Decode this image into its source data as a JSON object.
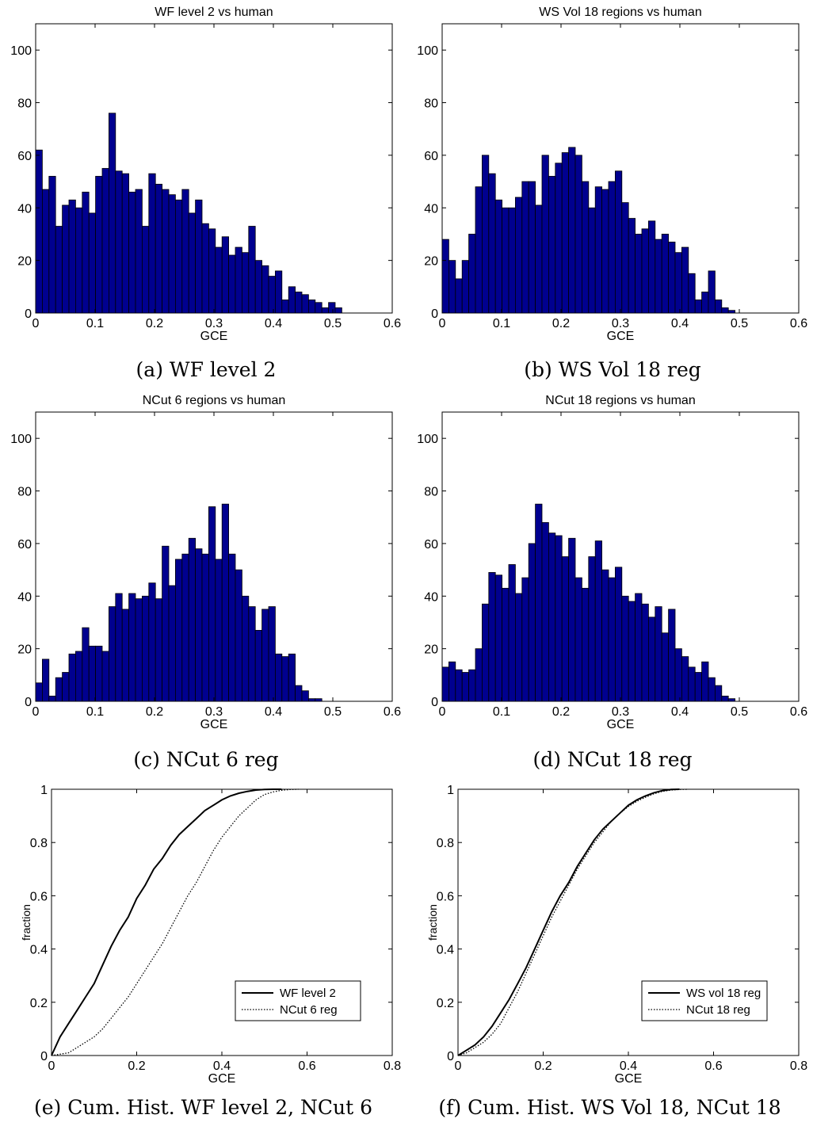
{
  "captions": {
    "a": "(a) WF level 2",
    "b": "(b) WS Vol 18 reg",
    "c": "(c) NCut 6 reg",
    "d": "(d) NCut 18 reg",
    "e": "(e) Cum. Hist. WF level 2, NCut 6",
    "f": "(f) Cum. Hist. WS Vol 18, NCut 18"
  },
  "colors": {
    "bar_fill": "#00008f",
    "bar_edge": "#000000",
    "axis": "#000000"
  },
  "chart_data": [
    {
      "id": "a",
      "type": "bar",
      "title": "WF level 2 vs human",
      "xlabel": "GCE",
      "ylabel": "",
      "xlim": [
        0,
        0.6
      ],
      "ylim": [
        0,
        110
      ],
      "xticks": [
        "0",
        "0.1",
        "0.2",
        "0.3",
        "0.4",
        "0.5",
        "0.6"
      ],
      "yticks": [
        "0",
        "20",
        "40",
        "60",
        "80",
        "100"
      ],
      "bin_start": 0,
      "bin_width": 0.0112,
      "values": [
        62,
        47,
        52,
        33,
        41,
        43,
        40,
        46,
        38,
        52,
        55,
        76,
        54,
        53,
        46,
        47,
        33,
        53,
        49,
        47,
        45,
        43,
        47,
        38,
        43,
        34,
        32,
        25,
        29,
        22,
        25,
        23,
        33,
        20,
        18,
        14,
        16,
        5,
        10,
        8,
        7,
        5,
        4,
        2,
        4,
        2,
        0,
        0,
        0,
        0,
        0,
        0,
        0
      ]
    },
    {
      "id": "b",
      "type": "bar",
      "title": "WS Vol 18 regions vs human",
      "xlabel": "GCE",
      "ylabel": "",
      "xlim": [
        0,
        0.6
      ],
      "ylim": [
        0,
        110
      ],
      "xticks": [
        "0",
        "0.1",
        "0.2",
        "0.3",
        "0.4",
        "0.5",
        "0.6"
      ],
      "yticks": [
        "0",
        "20",
        "40",
        "60",
        "80",
        "100"
      ],
      "bin_start": 0.0,
      "bin_width": 0.0112,
      "values": [
        28,
        20,
        13,
        20,
        30,
        48,
        60,
        53,
        43,
        40,
        40,
        44,
        50,
        50,
        41,
        60,
        52,
        57,
        61,
        63,
        60,
        50,
        40,
        48,
        47,
        50,
        54,
        42,
        36,
        30,
        32,
        35,
        28,
        30,
        27,
        23,
        25,
        15,
        5,
        8,
        16,
        5,
        2,
        1,
        0,
        0,
        0,
        0,
        0,
        0,
        0,
        0,
        0
      ]
    },
    {
      "id": "c",
      "type": "bar",
      "title": "NCut 6 regions vs human",
      "xlabel": "GCE",
      "ylabel": "",
      "xlim": [
        0,
        0.6
      ],
      "ylim": [
        0,
        110
      ],
      "xticks": [
        "0",
        "0.1",
        "0.2",
        "0.3",
        "0.4",
        "0.5",
        "0.6"
      ],
      "yticks": [
        "0",
        "20",
        "40",
        "60",
        "80",
        "100"
      ],
      "bin_start": 0.0,
      "bin_width": 0.0112,
      "values": [
        7,
        16,
        2,
        9,
        11,
        18,
        19,
        28,
        21,
        21,
        19,
        36,
        41,
        35,
        41,
        39,
        40,
        45,
        39,
        59,
        44,
        54,
        56,
        62,
        58,
        56,
        74,
        54,
        75,
        56,
        50,
        40,
        36,
        27,
        35,
        36,
        18,
        17,
        18,
        6,
        4,
        1,
        1,
        0,
        0,
        0,
        0,
        0,
        0,
        0,
        0,
        0,
        0
      ]
    },
    {
      "id": "d",
      "type": "bar",
      "title": "NCut 18 regions vs human",
      "xlabel": "GCE",
      "ylabel": "",
      "xlim": [
        0,
        0.6
      ],
      "ylim": [
        0,
        110
      ],
      "xticks": [
        "0",
        "0.1",
        "0.2",
        "0.3",
        "0.4",
        "0.5",
        "0.6"
      ],
      "yticks": [
        "0",
        "20",
        "40",
        "60",
        "80",
        "100"
      ],
      "bin_start": 0.0,
      "bin_width": 0.0112,
      "values": [
        13,
        15,
        12,
        11,
        12,
        20,
        37,
        49,
        48,
        43,
        52,
        41,
        47,
        60,
        75,
        68,
        64,
        63,
        55,
        62,
        47,
        43,
        55,
        61,
        50,
        47,
        51,
        40,
        38,
        41,
        37,
        32,
        36,
        26,
        35,
        20,
        17,
        13,
        11,
        15,
        9,
        6,
        2,
        1,
        0,
        0,
        0,
        0,
        0,
        0,
        0,
        0,
        0
      ]
    },
    {
      "id": "e",
      "type": "line",
      "title": "",
      "xlabel": "GCE",
      "ylabel": "fraction",
      "xlim": [
        0,
        0.8
      ],
      "ylim": [
        0,
        1
      ],
      "xticks": [
        "0",
        "0.2",
        "0.4",
        "0.6",
        "0.8"
      ],
      "yticks": [
        "0",
        "0.2",
        "0.4",
        "0.6",
        "0.8",
        "1"
      ],
      "legend_position": "lower-right",
      "series": [
        {
          "name": "WF level 2",
          "style": "solid",
          "x": [
            0,
            0.02,
            0.04,
            0.06,
            0.08,
            0.1,
            0.12,
            0.14,
            0.16,
            0.18,
            0.2,
            0.22,
            0.24,
            0.26,
            0.28,
            0.3,
            0.32,
            0.34,
            0.36,
            0.38,
            0.4,
            0.42,
            0.44,
            0.46,
            0.48,
            0.5,
            0.52,
            0.54
          ],
          "y": [
            0,
            0.07,
            0.12,
            0.17,
            0.22,
            0.27,
            0.34,
            0.41,
            0.47,
            0.52,
            0.59,
            0.64,
            0.7,
            0.74,
            0.79,
            0.83,
            0.86,
            0.89,
            0.92,
            0.94,
            0.96,
            0.975,
            0.985,
            0.992,
            0.997,
            0.999,
            1.0,
            1.0
          ]
        },
        {
          "name": "NCut 6 reg",
          "style": "dotted",
          "x": [
            0,
            0.04,
            0.06,
            0.08,
            0.1,
            0.12,
            0.14,
            0.16,
            0.18,
            0.2,
            0.22,
            0.24,
            0.26,
            0.28,
            0.3,
            0.32,
            0.34,
            0.36,
            0.38,
            0.4,
            0.42,
            0.44,
            0.46,
            0.48,
            0.5,
            0.52,
            0.54,
            0.56,
            0.58
          ],
          "y": [
            0,
            0.01,
            0.03,
            0.05,
            0.07,
            0.1,
            0.14,
            0.18,
            0.22,
            0.27,
            0.32,
            0.37,
            0.42,
            0.48,
            0.54,
            0.6,
            0.65,
            0.71,
            0.77,
            0.82,
            0.86,
            0.9,
            0.93,
            0.96,
            0.98,
            0.99,
            0.996,
            0.999,
            1.0
          ]
        }
      ]
    },
    {
      "id": "f",
      "type": "line",
      "title": "",
      "xlabel": "GCE",
      "ylabel": "fraction",
      "xlim": [
        0,
        0.8
      ],
      "ylim": [
        0,
        1
      ],
      "xticks": [
        "0",
        "0.2",
        "0.4",
        "0.6",
        "0.8"
      ],
      "yticks": [
        "0",
        "0.2",
        "0.4",
        "0.6",
        "0.8",
        "1"
      ],
      "legend_position": "lower-right",
      "series": [
        {
          "name": "WS vol 18 reg",
          "style": "solid",
          "x": [
            0,
            0.02,
            0.04,
            0.06,
            0.08,
            0.1,
            0.12,
            0.14,
            0.16,
            0.18,
            0.2,
            0.22,
            0.24,
            0.26,
            0.28,
            0.3,
            0.32,
            0.34,
            0.36,
            0.38,
            0.4,
            0.42,
            0.44,
            0.46,
            0.48,
            0.5,
            0.52
          ],
          "y": [
            0,
            0.02,
            0.04,
            0.07,
            0.11,
            0.16,
            0.21,
            0.27,
            0.33,
            0.4,
            0.47,
            0.54,
            0.6,
            0.65,
            0.71,
            0.76,
            0.81,
            0.85,
            0.88,
            0.91,
            0.94,
            0.96,
            0.975,
            0.987,
            0.995,
            0.999,
            1.0
          ]
        },
        {
          "name": "NCut 18 reg",
          "style": "dotted",
          "x": [
            0,
            0.02,
            0.04,
            0.06,
            0.08,
            0.1,
            0.12,
            0.14,
            0.16,
            0.18,
            0.2,
            0.22,
            0.24,
            0.26,
            0.28,
            0.3,
            0.32,
            0.34,
            0.36,
            0.38,
            0.4,
            0.42,
            0.44,
            0.46,
            0.48,
            0.5,
            0.52,
            0.54
          ],
          "y": [
            0,
            0.01,
            0.03,
            0.05,
            0.08,
            0.12,
            0.18,
            0.24,
            0.31,
            0.38,
            0.45,
            0.52,
            0.58,
            0.64,
            0.7,
            0.75,
            0.8,
            0.84,
            0.88,
            0.91,
            0.935,
            0.955,
            0.97,
            0.983,
            0.992,
            0.997,
            0.999,
            1.0
          ]
        }
      ]
    }
  ]
}
